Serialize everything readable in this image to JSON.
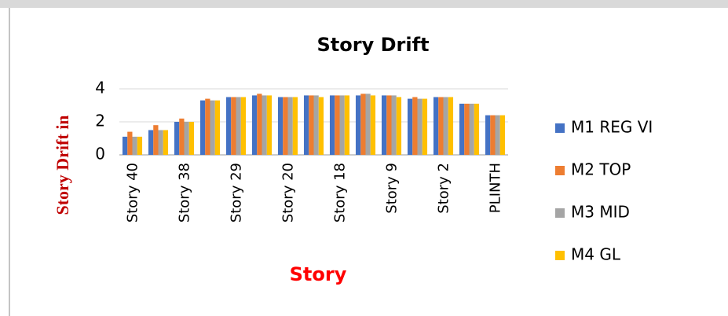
{
  "chart_data": {
    "type": "bar",
    "title": "Story Drift",
    "x_label": "Story",
    "y_label": "Story Drift in",
    "categories": [
      "Story 40",
      null,
      "Story 38",
      null,
      "Story 29",
      null,
      "Story 20",
      null,
      "Story 18",
      null,
      "Story 9",
      null,
      "Story 2",
      null,
      "PLINTH"
    ],
    "series": [
      {
        "name": "M1 REG VI",
        "color": "#4472c4",
        "values": [
          1.1,
          1.5,
          2.0,
          3.3,
          3.5,
          3.6,
          3.5,
          3.6,
          3.6,
          3.6,
          3.6,
          3.4,
          3.5,
          3.1,
          2.4
        ]
      },
      {
        "name": "M2 TOP",
        "color": "#ed7d31",
        "values": [
          1.4,
          1.8,
          2.2,
          3.4,
          3.5,
          3.7,
          3.5,
          3.6,
          3.6,
          3.7,
          3.6,
          3.5,
          3.5,
          3.1,
          2.4
        ]
      },
      {
        "name": "M3 MID",
        "color": "#a5a5a5",
        "values": [
          1.1,
          1.5,
          2.0,
          3.3,
          3.5,
          3.6,
          3.5,
          3.6,
          3.6,
          3.7,
          3.6,
          3.4,
          3.5,
          3.1,
          2.4
        ]
      },
      {
        "name": "M4 GL",
        "color": "#ffc000",
        "values": [
          1.1,
          1.5,
          2.0,
          3.3,
          3.5,
          3.6,
          3.5,
          3.5,
          3.6,
          3.6,
          3.5,
          3.4,
          3.5,
          3.1,
          2.4
        ]
      }
    ],
    "ylim": [
      0,
      4
    ],
    "yticks": [
      0,
      2,
      4
    ],
    "grid": true,
    "legend": "right"
  }
}
